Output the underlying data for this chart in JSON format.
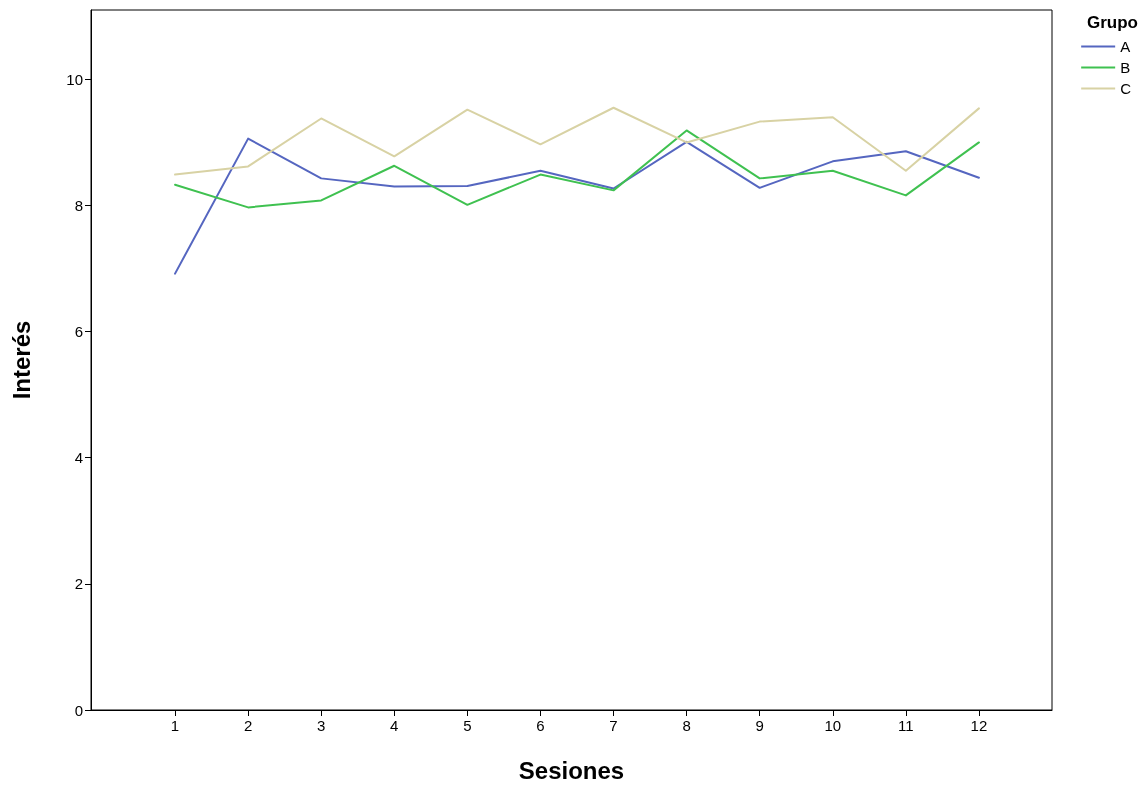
{
  "chart_data": {
    "type": "line",
    "xlabel": "Sesiones",
    "ylabel": "Interés",
    "legend_title": "Grupo",
    "legend": "top right",
    "grid": false,
    "marker": "none",
    "line_style": "solid",
    "x": [
      1,
      2,
      3,
      4,
      5,
      6,
      7,
      8,
      9,
      10,
      11,
      12
    ],
    "xlim": [
      -0.15,
      13
    ],
    "xticks": [
      1,
      2,
      3,
      4,
      5,
      6,
      7,
      8,
      9,
      10,
      11,
      12
    ],
    "ylim": [
      0,
      11.1
    ],
    "yticks": [
      0,
      2,
      4,
      6,
      8,
      10
    ],
    "series": [
      {
        "name": "A",
        "color": "#5566c0",
        "values": [
          6.92,
          9.06,
          8.43,
          8.3,
          8.31,
          8.55,
          8.27,
          9.01,
          8.28,
          8.7,
          8.86,
          8.44
        ]
      },
      {
        "name": "B",
        "color": "#3fc150",
        "values": [
          8.33,
          7.97,
          8.08,
          8.63,
          8.01,
          8.49,
          8.24,
          9.19,
          8.43,
          8.55,
          8.16,
          9.0
        ]
      },
      {
        "name": "C",
        "color": "#d8d2a4",
        "values": [
          8.49,
          8.62,
          9.38,
          8.78,
          9.52,
          8.97,
          9.55,
          9.0,
          9.33,
          9.4,
          8.55,
          9.54
        ]
      }
    ]
  }
}
